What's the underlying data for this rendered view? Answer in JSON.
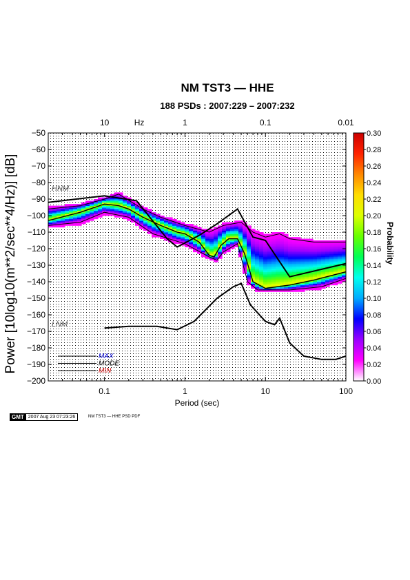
{
  "header": {
    "title": "NM TST3 — HHE",
    "subtitle": "188 PSDs : 2007:229 – 2007:232"
  },
  "footer": {
    "logo": "GMT",
    "timestamp": "2007 Aug 23 07:23:26",
    "label": "NM TST3 — HHE PSD PDF"
  },
  "chart_data": {
    "type": "heatmap",
    "title": "NM TST3 — HHE",
    "subtitle": "188 PSDs : 2007:229 – 2007:232",
    "xlabel": "Period (sec)",
    "x2label": "Hz",
    "ylabel": "Power [10log10(m**2/sec**4/Hz)] [dB]",
    "colorbar_label": "Probability",
    "x_scale": "log",
    "xlim": [
      0.02,
      100
    ],
    "ylim": [
      -200,
      -50
    ],
    "grid": true,
    "x_ticks": [
      0.1,
      1,
      10,
      100
    ],
    "x_tick_labels": [
      "0.1",
      "1",
      "10",
      "100"
    ],
    "x2_ticks": [
      0.1,
      1,
      10,
      100
    ],
    "x2_tick_labels": [
      "10",
      "1",
      "0.1",
      "0.01"
    ],
    "y_ticks": [
      -50,
      -60,
      -70,
      -80,
      -90,
      -100,
      -110,
      -120,
      -130,
      -140,
      -150,
      -160,
      -170,
      -180,
      -190,
      -200
    ],
    "colorbar_range": [
      0,
      0.3
    ],
    "colorbar_ticks": [
      "0.30",
      "0.28",
      "0.26",
      "0.24",
      "0.22",
      "0.20",
      "0.18",
      "0.16",
      "0.14",
      "0.12",
      "0.10",
      "0.08",
      "0.06",
      "0.04",
      "0.02",
      "0.00"
    ],
    "colorscale": [
      "#ffffff",
      "#ff00ff",
      "#9900ff",
      "#0000ff",
      "#00aaff",
      "#00ffee",
      "#00ff55",
      "#66ff00",
      "#ddff00",
      "#ffdd00",
      "#ff8800",
      "#ff2200",
      "#cc0000"
    ],
    "noise_models": [
      {
        "name": "HNM",
        "points": [
          [
            0.02,
            -92
          ],
          [
            0.1,
            -88
          ],
          [
            0.25,
            -91
          ],
          [
            0.6,
            -114
          ],
          [
            0.8,
            -119
          ],
          [
            1.5,
            -112
          ],
          [
            2.5,
            -105
          ],
          [
            4.5,
            -96
          ],
          [
            7,
            -113
          ],
          [
            10,
            -115
          ],
          [
            20,
            -137
          ],
          [
            100,
            -129
          ]
        ]
      },
      {
        "name": "LNM",
        "points": [
          [
            0.1,
            -168
          ],
          [
            0.2,
            -167
          ],
          [
            0.45,
            -167
          ],
          [
            0.8,
            -169
          ],
          [
            1.3,
            -164
          ],
          [
            2.5,
            -150
          ],
          [
            4,
            -143
          ],
          [
            5,
            -141
          ],
          [
            6.5,
            -154
          ],
          [
            10,
            -164
          ],
          [
            13,
            -166
          ],
          [
            15,
            -162
          ],
          [
            20,
            -177
          ],
          [
            30,
            -185
          ],
          [
            50,
            -187
          ],
          [
            75,
            -187
          ],
          [
            100,
            -185
          ]
        ]
      }
    ],
    "series": [
      {
        "name": "MAX",
        "color": "#000000",
        "values": [
          [
            0.02,
            -96
          ],
          [
            0.05,
            -94
          ],
          [
            0.1,
            -90
          ],
          [
            0.15,
            -87
          ],
          [
            0.3,
            -96
          ],
          [
            0.5,
            -101
          ],
          [
            1,
            -106
          ],
          [
            2,
            -110
          ],
          [
            3,
            -106
          ],
          [
            5,
            -104
          ],
          [
            7,
            -110
          ],
          [
            10,
            -113
          ],
          [
            15,
            -111
          ],
          [
            20,
            -114
          ],
          [
            40,
            -116
          ],
          [
            100,
            -116
          ]
        ]
      },
      {
        "name": "MODE",
        "color": "#000000",
        "values": [
          [
            0.02,
            -103
          ],
          [
            0.05,
            -98
          ],
          [
            0.1,
            -93
          ],
          [
            0.15,
            -94
          ],
          [
            0.2,
            -96
          ],
          [
            0.3,
            -101
          ],
          [
            0.5,
            -106
          ],
          [
            0.8,
            -110
          ],
          [
            1,
            -111
          ],
          [
            1.5,
            -116
          ],
          [
            2,
            -124
          ],
          [
            2.3,
            -125
          ],
          [
            2.8,
            -118
          ],
          [
            3.5,
            -114
          ],
          [
            4.5,
            -114
          ],
          [
            5.5,
            -123
          ],
          [
            7,
            -140
          ],
          [
            10,
            -144
          ],
          [
            20,
            -142
          ],
          [
            40,
            -139
          ],
          [
            100,
            -134
          ]
        ]
      },
      {
        "name": "MIN",
        "color": "#000000",
        "values": [
          [
            0.02,
            -106
          ],
          [
            0.05,
            -104
          ],
          [
            0.1,
            -98
          ],
          [
            0.2,
            -101
          ],
          [
            0.4,
            -111
          ],
          [
            1,
            -117
          ],
          [
            2,
            -125
          ],
          [
            2.5,
            -127
          ],
          [
            3,
            -122
          ],
          [
            4.5,
            -117
          ],
          [
            6,
            -140
          ],
          [
            8,
            -145
          ],
          [
            20,
            -145
          ],
          [
            50,
            -143
          ],
          [
            100,
            -138
          ]
        ]
      }
    ],
    "legend_position": "bottom-left"
  }
}
